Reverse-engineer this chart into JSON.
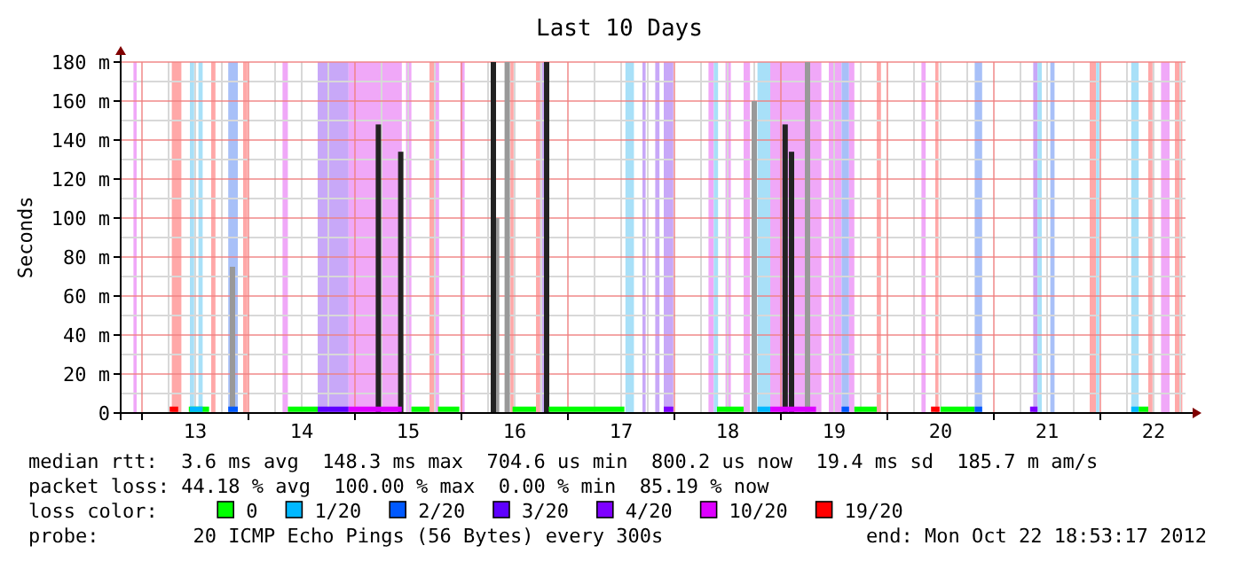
{
  "chart_data": {
    "type": "line",
    "title": "Last 10 Days",
    "ylabel": "Seconds",
    "legend_title": "loss color:",
    "legend": "bottom",
    "grid": true,
    "xlim": [
      12.8,
      22.8
    ],
    "xticks": [
      {
        "value": 13,
        "label": null
      },
      {
        "value": 13.5,
        "label": "13"
      },
      {
        "value": 14,
        "label": null
      },
      {
        "value": 14.5,
        "label": "14"
      },
      {
        "value": 15,
        "label": null
      },
      {
        "value": 15.5,
        "label": "15"
      },
      {
        "value": 16,
        "label": null
      },
      {
        "value": 16.5,
        "label": "16"
      },
      {
        "value": 17,
        "label": null
      },
      {
        "value": 17.5,
        "label": "17"
      },
      {
        "value": 18,
        "label": null
      },
      {
        "value": 18.5,
        "label": "18"
      },
      {
        "value": 19,
        "label": null
      },
      {
        "value": 19.5,
        "label": "19"
      },
      {
        "value": 20,
        "label": null
      },
      {
        "value": 20.5,
        "label": "20"
      },
      {
        "value": 21,
        "label": null
      },
      {
        "value": 21.5,
        "label": "21"
      },
      {
        "value": 22,
        "label": null
      },
      {
        "value": 22.5,
        "label": "22"
      }
    ],
    "ylim": [
      0,
      180
    ],
    "yticks": [
      0,
      {
        "value": 20,
        "label": "20 m"
      },
      {
        "value": 40,
        "label": "40 m"
      },
      {
        "value": 60,
        "label": "60 m"
      },
      {
        "value": 80,
        "label": "80 m"
      },
      {
        "value": 100,
        "label": "100 m"
      },
      {
        "value": 120,
        "label": "120 m"
      },
      {
        "value": 140,
        "label": "140 m"
      },
      {
        "value": 160,
        "label": "160 m"
      },
      {
        "value": 180,
        "label": "180 m"
      }
    ],
    "bands": [
      {
        "axis": "x",
        "from": 12.92,
        "to": 12.95,
        "color": "#f0a8f8"
      },
      {
        "axis": "x",
        "from": 13.28,
        "to": 13.37,
        "color": "#ffa8a8"
      },
      {
        "axis": "x",
        "from": 13.45,
        "to": 13.49,
        "color": "#a8e0f8"
      },
      {
        "axis": "x",
        "from": 13.53,
        "to": 13.57,
        "color": "#a8e0f8"
      },
      {
        "axis": "x",
        "from": 13.65,
        "to": 13.69,
        "color": "#ffa8a8"
      },
      {
        "axis": "x",
        "from": 13.81,
        "to": 13.9,
        "color": "#a8c0f8"
      },
      {
        "axis": "x",
        "from": 13.95,
        "to": 13.99,
        "color": "#ffa8a8"
      },
      {
        "axis": "x",
        "from": 14.32,
        "to": 14.37,
        "color": "#f0a8f8"
      },
      {
        "axis": "x",
        "from": 14.65,
        "to": 14.94,
        "color": "#c8a8f8"
      },
      {
        "axis": "x",
        "from": 14.94,
        "to": 15.44,
        "color": "#f0a8f8"
      },
      {
        "axis": "x",
        "from": 15.48,
        "to": 15.53,
        "color": "#f0a8f8"
      },
      {
        "axis": "x",
        "from": 15.7,
        "to": 15.745,
        "color": "#ffa8a8"
      },
      {
        "axis": "x",
        "from": 15.745,
        "to": 15.79,
        "color": "#f0a8f8"
      },
      {
        "axis": "x",
        "from": 15.99,
        "to": 16.03,
        "color": "#f0a8f8"
      },
      {
        "axis": "x",
        "from": 16.46,
        "to": 16.49,
        "color": "#ffa8a8"
      },
      {
        "axis": "x",
        "from": 16.7,
        "to": 16.74,
        "color": "#ffa8a8"
      },
      {
        "axis": "x",
        "from": 16.74,
        "to": 16.78,
        "color": "#c8a8f8"
      },
      {
        "axis": "x",
        "from": 17.54,
        "to": 17.62,
        "color": "#a8e0f8"
      },
      {
        "axis": "x",
        "from": 17.7,
        "to": 17.73,
        "color": "#c8a8f8"
      },
      {
        "axis": "x",
        "from": 17.82,
        "to": 17.86,
        "color": "#c8a8f8"
      },
      {
        "axis": "x",
        "from": 17.9,
        "to": 17.99,
        "color": "#c8a8f8"
      },
      {
        "axis": "x",
        "from": 18.32,
        "to": 18.37,
        "color": "#f0a8f8"
      },
      {
        "axis": "x",
        "from": 18.37,
        "to": 18.41,
        "color": "#a8e0f8"
      },
      {
        "axis": "x",
        "from": 18.48,
        "to": 18.53,
        "color": "#f0a8f8"
      },
      {
        "axis": "x",
        "from": 18.65,
        "to": 18.71,
        "color": "#f0a8f8"
      },
      {
        "axis": "x",
        "from": 18.78,
        "to": 18.9,
        "color": "#a8e0f8"
      },
      {
        "axis": "x",
        "from": 18.9,
        "to": 19.38,
        "color": "#f0a8f8"
      },
      {
        "axis": "x",
        "from": 19.45,
        "to": 19.57,
        "color": "#f0a8f8"
      },
      {
        "axis": "x",
        "from": 19.57,
        "to": 19.64,
        "color": "#a8c0f8"
      },
      {
        "axis": "x",
        "from": 19.64,
        "to": 19.69,
        "color": "#f0a8f8"
      },
      {
        "axis": "x",
        "from": 19.9,
        "to": 19.94,
        "color": "#ffa8a8"
      },
      {
        "axis": "x",
        "from": 20.32,
        "to": 20.36,
        "color": "#f0a8f8"
      },
      {
        "axis": "x",
        "from": 20.45,
        "to": 20.48,
        "color": "#ffa8a8"
      },
      {
        "axis": "x",
        "from": 20.82,
        "to": 20.89,
        "color": "#a8c0f8"
      },
      {
        "axis": "x",
        "from": 21.37,
        "to": 21.41,
        "color": "#c8a8f8"
      },
      {
        "axis": "x",
        "from": 21.41,
        "to": 21.45,
        "color": "#a8e0f8"
      },
      {
        "axis": "x",
        "from": 21.53,
        "to": 21.57,
        "color": "#a8c0f8"
      },
      {
        "axis": "x",
        "from": 21.9,
        "to": 21.96,
        "color": "#ffa8a8"
      },
      {
        "axis": "x",
        "from": 21.96,
        "to": 21.99,
        "color": "#a8e0f8"
      },
      {
        "axis": "x",
        "from": 22.29,
        "to": 22.36,
        "color": "#a8e0f8"
      },
      {
        "axis": "x",
        "from": 22.45,
        "to": 22.49,
        "color": "#ffa8a8"
      },
      {
        "axis": "x",
        "from": 22.57,
        "to": 22.65,
        "color": "#f0a8f8"
      },
      {
        "axis": "x",
        "from": 22.7,
        "to": 22.77,
        "color": "#ffa8a8"
      }
    ],
    "series": [
      {
        "type": "bar",
        "color": "#999999",
        "x": [
          13.85,
          16.33,
          16.43,
          18.75,
          19.25
        ],
        "values": [
          75,
          100,
          180,
          160,
          180
        ]
      },
      {
        "type": "bar",
        "color": "#222222",
        "x": [
          15.22,
          15.43,
          16.3,
          16.8,
          19.04,
          19.1
        ],
        "values": [
          148,
          134,
          180,
          180,
          148,
          134
        ]
      },
      {
        "name": "0",
        "color": "#00ff00",
        "x": [
          13.44,
          13.63,
          13.64,
          14.37,
          14.65,
          14.66,
          15.53,
          15.7,
          15.71,
          15.78,
          15.98,
          15.99,
          16.48,
          16.7,
          16.71,
          16.82,
          17.53,
          17.54,
          18.4,
          18.65,
          18.66,
          19.69,
          19.9,
          19.91,
          20.5,
          20.82,
          20.83,
          22.36,
          22.45
        ],
        "values": [
          1,
          1,
          null,
          1,
          1,
          null,
          1,
          1,
          null,
          1,
          1,
          null,
          1,
          1,
          null,
          1,
          1,
          null,
          1,
          1,
          null,
          1,
          1,
          null,
          1,
          1,
          null,
          1,
          1
        ]
      },
      {
        "name": "1/20",
        "color": "#00b8ff",
        "x": [
          13.45,
          13.57,
          13.58,
          18.78,
          18.9,
          18.91,
          22.29,
          22.36
        ],
        "values": [
          1,
          1,
          null,
          1,
          1,
          null,
          1,
          1
        ]
      },
      {
        "name": "2/20",
        "color": "#0059ff",
        "x": [
          13.81,
          13.9,
          13.91,
          19.57,
          19.64,
          19.65,
          20.82,
          20.89
        ],
        "values": [
          1,
          1,
          null,
          1,
          1,
          null,
          1,
          1
        ]
      },
      {
        "name": "3/20",
        "color": "#5e00ff",
        "x": [
          14.65,
          14.94
        ],
        "values": [
          1,
          1
        ]
      },
      {
        "name": "4/20",
        "color": "#7e00ff",
        "x": [
          17.9,
          17.99,
          18.0,
          21.34,
          21.41
        ],
        "values": [
          1,
          1,
          null,
          1,
          1
        ]
      },
      {
        "name": "10/20",
        "color": "#dd00ff",
        "x": [
          14.94,
          15.44,
          15.45,
          18.9,
          19.33
        ],
        "values": [
          1,
          1,
          null,
          1,
          1
        ]
      },
      {
        "name": "19/20",
        "color": "#ff0000",
        "x": [
          13.26,
          13.34,
          13.35,
          20.41,
          20.49
        ],
        "values": [
          1,
          1,
          null,
          1,
          1
        ]
      }
    ],
    "annotations": [
      "median rtt:  3.6 ms avg  148.3 ms max  704.6 us min  800.2 us now  19.4 ms sd  185.7 m am/s",
      "packet loss: 44.18 % avg  100.00 % max  0.00 % min  85.19 % now",
      "probe:        20 ICMP Echo Pings (56 Bytes) every 300s",
      "end: Mon Oct 22 18:53:17 2012"
    ]
  }
}
